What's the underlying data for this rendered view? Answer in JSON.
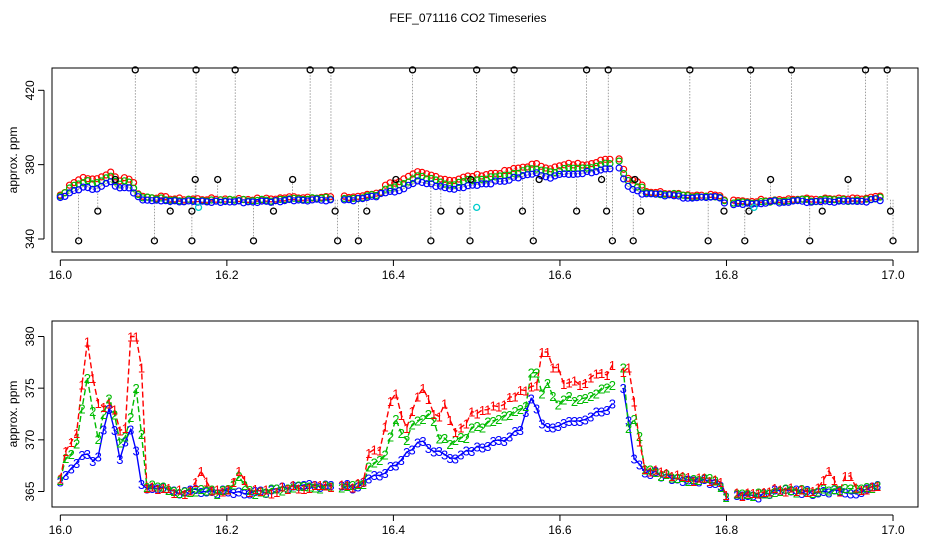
{
  "title": "FEF_071116  CO2 Timeseries",
  "colors": {
    "sensor1": "#ff0000",
    "sensor2": "#00bb00",
    "sensor3": "#0000ff",
    "outlier": "#000000",
    "flag": "#00cccc",
    "connector": "#888888"
  },
  "chart_data": [
    {
      "type": "scatter",
      "title": "",
      "xlabel": "",
      "ylabel": "approx. ppm",
      "xlim": [
        15.99,
        17.03
      ],
      "ylim": [
        333,
        432
      ],
      "xticks": [
        16.0,
        16.2,
        16.4,
        16.6,
        16.8,
        17.0
      ],
      "xtick_labels": [
        "16.0",
        "16.2",
        "16.4",
        "16.6",
        "16.8",
        "17.0"
      ],
      "yticks": [
        340,
        380,
        420
      ],
      "ytick_labels": [
        "340",
        "380",
        "420"
      ],
      "baseline": [
        [
          16.0,
          366
        ],
        [
          16.01,
          367
        ],
        [
          16.02,
          368
        ],
        [
          16.03,
          369
        ],
        [
          16.04,
          368
        ],
        [
          16.05,
          369
        ],
        [
          16.06,
          370
        ],
        [
          16.07,
          368
        ],
        [
          16.08,
          369
        ],
        [
          16.09,
          367
        ],
        [
          16.1,
          365.5
        ],
        [
          16.12,
          365.5
        ],
        [
          16.14,
          365
        ],
        [
          16.16,
          365
        ],
        [
          16.18,
          365
        ],
        [
          16.2,
          365
        ],
        [
          16.22,
          365
        ],
        [
          16.25,
          365
        ],
        [
          16.28,
          365.5
        ],
        [
          16.3,
          365.5
        ],
        [
          16.33,
          365.5
        ],
        [
          16.35,
          365.5
        ],
        [
          16.37,
          366
        ],
        [
          16.39,
          367
        ],
        [
          16.41,
          368
        ],
        [
          16.43,
          370
        ],
        [
          16.45,
          369
        ],
        [
          16.47,
          368
        ],
        [
          16.49,
          369
        ],
        [
          16.51,
          369.5
        ],
        [
          16.53,
          370
        ],
        [
          16.55,
          371
        ],
        [
          16.57,
          372
        ],
        [
          16.59,
          371
        ],
        [
          16.61,
          372
        ],
        [
          16.63,
          372
        ],
        [
          16.65,
          373
        ],
        [
          16.66,
          373
        ],
        [
          16.67,
          374
        ],
        [
          16.68,
          369
        ],
        [
          16.7,
          367
        ],
        [
          16.73,
          366.5
        ],
        [
          16.76,
          366
        ],
        [
          16.79,
          366
        ],
        [
          16.8,
          364.5
        ],
        [
          16.83,
          364.5
        ],
        [
          16.86,
          365
        ],
        [
          16.9,
          365
        ],
        [
          16.93,
          365
        ],
        [
          16.96,
          365
        ],
        [
          16.98,
          365.5
        ]
      ],
      "gap_starts": [
        16.33,
        16.665,
        16.8
      ],
      "outliers_high": [
        16.09,
        16.163,
        16.21,
        16.3,
        16.325,
        16.423,
        16.5,
        16.545,
        16.632,
        16.658,
        16.756,
        16.829,
        16.878,
        16.967,
        16.993
      ],
      "outliers_mid": [
        16.066,
        16.162,
        16.189,
        16.279,
        16.403,
        16.493,
        16.575,
        16.65,
        16.69,
        16.853,
        16.946
      ],
      "outliers_low": [
        16.045,
        16.132,
        16.158,
        16.256,
        16.33,
        16.368,
        16.457,
        16.48,
        16.555,
        16.62,
        16.656,
        16.697,
        16.797,
        16.827,
        16.915,
        16.997
      ],
      "outliers_bottom": [
        16.022,
        16.113,
        16.158,
        16.232,
        16.333,
        16.358,
        16.445,
        16.492,
        16.568,
        16.663,
        16.688,
        16.778,
        16.822,
        16.9,
        17.0
      ],
      "outlier_high_value": 431,
      "outlier_mid_value": 372,
      "outlier_low_value": 355,
      "outlier_bottom_value": 339,
      "flag_points": [
        [
          16.166,
          357
        ],
        [
          16.5,
          357
        ],
        [
          16.833,
          357
        ]
      ]
    },
    {
      "type": "line",
      "title": "",
      "xlabel": "",
      "ylabel": "approx. ppm",
      "xlim": [
        15.99,
        17.03
      ],
      "ylim": [
        363.5,
        381.5
      ],
      "xticks": [
        16.0,
        16.2,
        16.4,
        16.6,
        16.8,
        17.0
      ],
      "xtick_labels": [
        "16.0",
        "16.2",
        "16.4",
        "16.6",
        "16.8",
        "17.0"
      ],
      "yticks": [
        365,
        370,
        375,
        380
      ],
      "ytick_labels": [
        "365",
        "370",
        "375",
        "380"
      ],
      "series": [
        {
          "name": "1",
          "marker": "1",
          "color_key": "sensor1",
          "spikes": [
            [
              16.032,
              379.5
            ],
            [
              16.04,
              376
            ],
            [
              16.058,
              373.5
            ],
            [
              16.088,
              380
            ],
            [
              16.094,
              377
            ],
            [
              16.17,
              367
            ],
            [
              16.215,
              367
            ],
            [
              16.395,
              373
            ],
            [
              16.405,
              374.5
            ],
            [
              16.437,
              375
            ],
            [
              16.46,
              373.5
            ],
            [
              16.582,
              378.5
            ],
            [
              16.595,
              377
            ],
            [
              16.67,
              377.5
            ],
            [
              16.684,
              377
            ],
            [
              16.922,
              367
            ],
            [
              16.945,
              366.5
            ]
          ],
          "offset_early": 2.5,
          "offset_mid": 3.5,
          "offset_late": 1.0
        },
        {
          "name": "2",
          "marker": "2",
          "color_key": "sensor2",
          "spikes": [
            [
              16.03,
              376
            ],
            [
              16.057,
              374
            ],
            [
              16.09,
              375
            ],
            [
              16.213,
              366.5
            ],
            [
              16.402,
              372
            ],
            [
              16.44,
              372.5
            ],
            [
              16.568,
              376.5
            ],
            [
              16.585,
              375.5
            ],
            [
              16.672,
              377
            ],
            [
              16.69,
              372
            ]
          ],
          "offset_early": 1.5,
          "offset_mid": 2.0,
          "offset_late": 0.5
        },
        {
          "name": "3",
          "marker": "3",
          "color_key": "sensor3",
          "spikes": [
            [
              16.06,
              373
            ],
            [
              16.085,
              371
            ],
            [
              16.567,
              374
            ],
            [
              16.674,
              375
            ]
          ],
          "offset_early": 0.0,
          "offset_mid": 0.0,
          "offset_late": 0.0
        }
      ]
    }
  ]
}
